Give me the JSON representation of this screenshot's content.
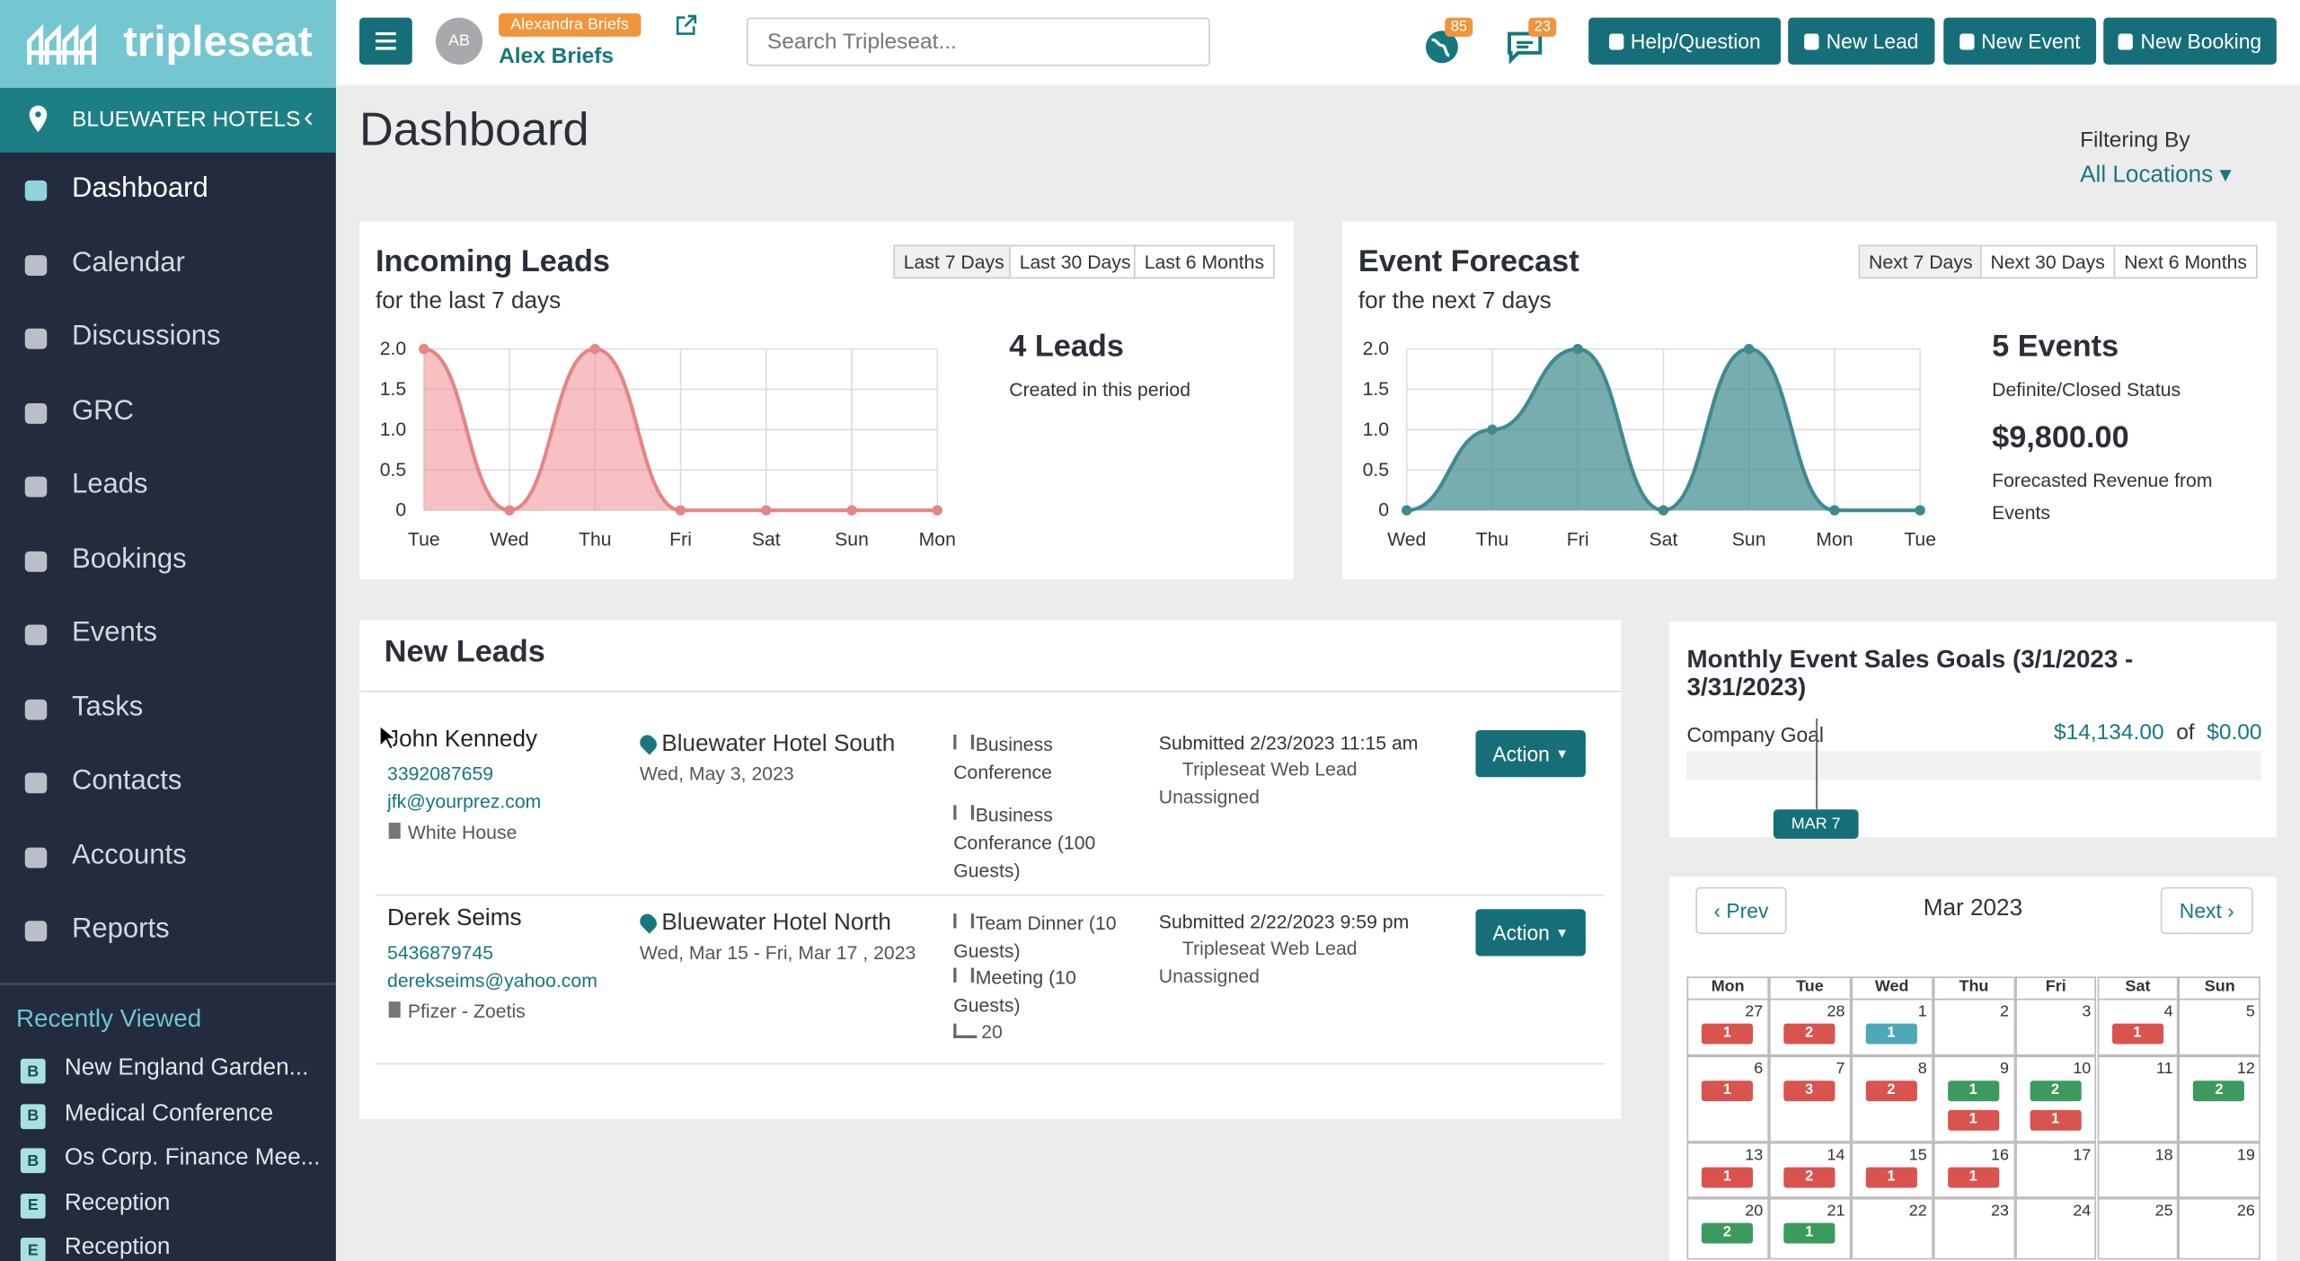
{
  "header": {
    "logo": "tripleseat",
    "avatar": "AB",
    "impersonating": "Alexandra Briefs",
    "user_name": "Alex Briefs",
    "search_placeholder": "Search Tripleseat...",
    "notifications": 85,
    "messages": 23,
    "buttons": [
      "Help/Question",
      "New Lead",
      "New Event",
      "New Booking"
    ]
  },
  "sidebar": {
    "location": "BLUEWATER HOTELS",
    "nav": [
      "Dashboard",
      "Calendar",
      "Discussions",
      "GRC",
      "Leads",
      "Bookings",
      "Events",
      "Tasks",
      "Contacts",
      "Accounts",
      "Reports"
    ],
    "recently_viewed_title": "Recently Viewed",
    "recently_viewed": [
      {
        "badge": "B",
        "label": "New England Garden..."
      },
      {
        "badge": "B",
        "label": "Medical Conference"
      },
      {
        "badge": "B",
        "label": "Os Corp. Finance Mee..."
      },
      {
        "badge": "E",
        "label": "Reception"
      },
      {
        "badge": "E",
        "label": "Reception"
      }
    ]
  },
  "page": {
    "title": "Dashboard",
    "filter_label": "Filtering By",
    "filter_value": "All Locations"
  },
  "incoming_leads": {
    "title": "Incoming Leads",
    "subtitle": "for the last 7 days",
    "ranges": [
      "Last 7 Days",
      "Last 30 Days",
      "Last 6 Months"
    ],
    "stats": [
      {
        "value": "4 Leads",
        "label": "Created in this period"
      }
    ],
    "chart": {
      "type": "line",
      "categories": [
        "Tue",
        "Wed",
        "Thu",
        "Fri",
        "Sat",
        "Sun",
        "Mon"
      ],
      "values": [
        2,
        0,
        2,
        0,
        0,
        0,
        0
      ],
      "color": "#e58585",
      "fill": "rgba(240,140,145,0.55)",
      "ylim": [
        0,
        2
      ],
      "yticks": [
        0,
        0.5,
        {
          "value": 1,
          "label": "1.0"
        },
        1.5,
        {
          "value": 2,
          "label": "2.0"
        }
      ],
      "grid": true
    }
  },
  "event_forecast": {
    "title": "Event Forecast",
    "subtitle": "for the next 7 days",
    "ranges": [
      "Next 7 Days",
      "Next 30 Days",
      "Next 6 Months"
    ],
    "stats": [
      {
        "value": "5 Events",
        "label": "Definite/Closed Status"
      },
      {
        "value": "$9,800.00",
        "label": "Forecasted Revenue from Events"
      }
    ],
    "chart": {
      "type": "line",
      "categories": [
        "Wed",
        "Thu",
        "Fri",
        "Sat",
        "Sun",
        "Mon",
        "Tue"
      ],
      "values": [
        0,
        1,
        2,
        0,
        2,
        0,
        0
      ],
      "color": "#3f8a8f",
      "fill": "rgba(63,138,143,0.7)",
      "ylim": [
        0,
        2
      ],
      "yticks": [
        0,
        0.5,
        {
          "value": 1,
          "label": "1.0"
        },
        1.5,
        {
          "value": 2,
          "label": "2.0"
        }
      ],
      "grid": true
    }
  },
  "new_leads": {
    "title": "New Leads",
    "rows": [
      {
        "name": "John Kennedy",
        "phone": "3392087659",
        "email": "jfk@yourprez.com",
        "company": "White House",
        "location": "Bluewater Hotel South",
        "date": "Wed, May 3, 2023",
        "events": [
          "Business Conference",
          "Business Conferance (100 Guests)"
        ],
        "rooms": null,
        "submitted": "Submitted 2/23/2023 11:15 am",
        "source": "Tripleseat Web Lead",
        "assignee": "Unassigned",
        "action": "Action"
      },
      {
        "name": "Derek Seims",
        "phone": "5436879745",
        "email": "derekseims@yahoo.com",
        "company": "Pfizer - Zoetis",
        "location": "Bluewater Hotel North",
        "date": "Wed, Mar 15 - Fri, Mar 17 , 2023",
        "events": [
          "Team Dinner (10 Guests)",
          "Meeting (10 Guests)"
        ],
        "rooms": "20",
        "submitted": "Submitted 2/22/2023 9:59 pm",
        "source": "Tripleseat Web Lead",
        "assignee": "Unassigned",
        "action": "Action"
      }
    ]
  },
  "goals": {
    "title": "Monthly Event Sales Goals (3/1/2023 - 3/31/2023)",
    "goal_label": "Company Goal",
    "actual": "$14,134.00",
    "of": "of",
    "target": "$0.00",
    "marker": "MAR 7"
  },
  "calendar": {
    "prev": "Prev",
    "next": "Next",
    "month": "Mar 2023",
    "weekdays": [
      "Mon",
      "Tue",
      "Wed",
      "Thu",
      "Fri",
      "Sat",
      "Sun"
    ],
    "weeks": [
      [
        {
          "day": "27",
          "badges": [
            {
              "count": "1",
              "color": "#d9534f"
            }
          ]
        },
        {
          "day": "28",
          "badges": [
            {
              "count": "2",
              "color": "#d9534f"
            }
          ]
        },
        {
          "day": "1",
          "badges": [
            {
              "count": "1",
              "color": "#4fa8b8"
            }
          ]
        },
        {
          "day": "2",
          "badges": []
        },
        {
          "day": "3",
          "badges": []
        },
        {
          "day": "4",
          "badges": [
            {
              "count": "1",
              "color": "#d9534f"
            }
          ]
        },
        {
          "day": "5",
          "badges": []
        }
      ],
      [
        {
          "day": "6",
          "badges": [
            {
              "count": "1",
              "color": "#d9534f"
            }
          ]
        },
        {
          "day": "7",
          "badges": [
            {
              "count": "3",
              "color": "#d9534f"
            }
          ]
        },
        {
          "day": "8",
          "badges": [
            {
              "count": "2",
              "color": "#d9534f"
            }
          ]
        },
        {
          "day": "9",
          "badges": [
            {
              "count": "1",
              "color": "#3c9a5f"
            },
            {
              "count": "1",
              "color": "#d9534f"
            }
          ]
        },
        {
          "day": "10",
          "badges": [
            {
              "count": "2",
              "color": "#3c9a5f"
            },
            {
              "count": "1",
              "color": "#d9534f"
            }
          ]
        },
        {
          "day": "11",
          "badges": []
        },
        {
          "day": "12",
          "badges": [
            {
              "count": "2",
              "color": "#3c9a5f"
            }
          ]
        }
      ],
      [
        {
          "day": "13",
          "badges": [
            {
              "count": "1",
              "color": "#d9534f"
            }
          ]
        },
        {
          "day": "14",
          "badges": [
            {
              "count": "2",
              "color": "#d9534f"
            }
          ]
        },
        {
          "day": "15",
          "badges": [
            {
              "count": "1",
              "color": "#d9534f"
            }
          ]
        },
        {
          "day": "16",
          "badges": [
            {
              "count": "1",
              "color": "#d9534f"
            }
          ]
        },
        {
          "day": "17",
          "badges": []
        },
        {
          "day": "18",
          "badges": []
        },
        {
          "day": "19",
          "badges": []
        }
      ],
      [
        {
          "day": "20",
          "badges": [
            {
              "count": "2",
              "color": "#3c9a5f"
            }
          ]
        },
        {
          "day": "21",
          "badges": [
            {
              "count": "1",
              "color": "#3c9a5f"
            }
          ]
        },
        {
          "day": "22",
          "badges": []
        },
        {
          "day": "23",
          "badges": []
        },
        {
          "day": "24",
          "badges": []
        },
        {
          "day": "25",
          "badges": []
        },
        {
          "day": "26",
          "badges": []
        }
      ]
    ]
  }
}
